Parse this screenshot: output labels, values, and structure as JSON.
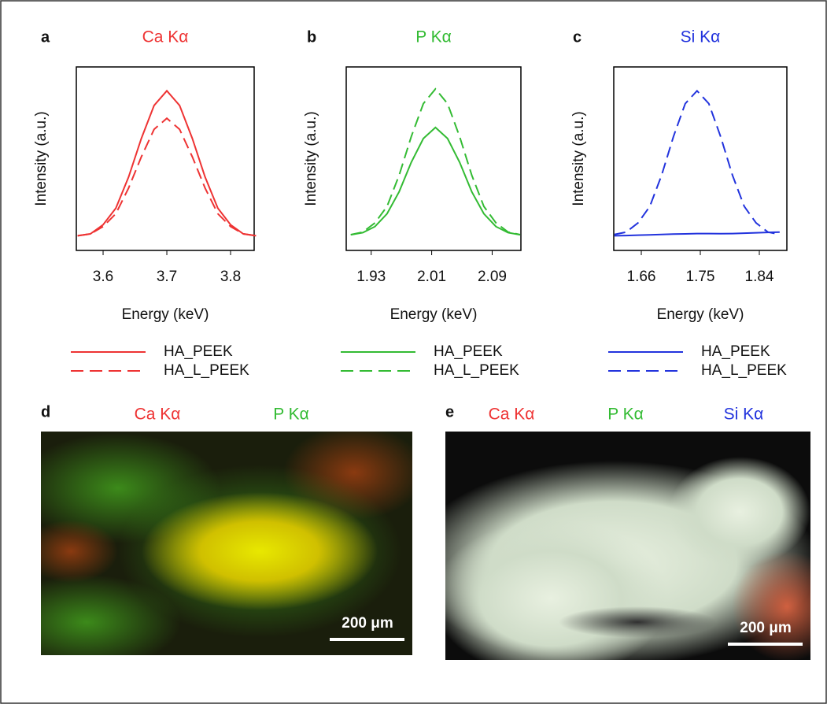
{
  "chart_data": [
    {
      "type": "line",
      "label": "a",
      "title": "Ca Kα",
      "title_color": "#ee3333",
      "xlabel": "Energy (keV)",
      "ylabel": "Intensity (a.u.)",
      "x": [
        3.56,
        3.58,
        3.6,
        3.62,
        3.64,
        3.66,
        3.68,
        3.7,
        3.72,
        3.74,
        3.76,
        3.78,
        3.8,
        3.82,
        3.84
      ],
      "series": [
        {
          "name": "HA_PEEK",
          "color": "#ee3333",
          "dash": false,
          "values": [
            0.08,
            0.09,
            0.14,
            0.23,
            0.4,
            0.61,
            0.79,
            0.87,
            0.79,
            0.61,
            0.4,
            0.23,
            0.14,
            0.09,
            0.08
          ]
        },
        {
          "name": "HA_L_PEEK",
          "color": "#ee3333",
          "dash": true,
          "values": [
            0.08,
            0.09,
            0.13,
            0.2,
            0.34,
            0.51,
            0.66,
            0.72,
            0.66,
            0.51,
            0.34,
            0.2,
            0.13,
            0.09,
            0.08
          ]
        }
      ],
      "xlim": [
        3.558,
        3.837
      ],
      "xticks": [
        3.6,
        3.7,
        3.8
      ],
      "ylim": [
        0,
        1
      ]
    },
    {
      "type": "line",
      "label": "b",
      "title": "P Kα",
      "title_color": "#33bb33",
      "xlabel": "Energy (keV)",
      "ylabel": "Intensity (a.u.)",
      "x": [
        1.903,
        1.919,
        1.935,
        1.951,
        1.967,
        1.983,
        1.999,
        2.015,
        2.031,
        2.047,
        2.063,
        2.079,
        2.095,
        2.111,
        2.127
      ],
      "series": [
        {
          "name": "HA_PEEK",
          "color": "#33bb33",
          "dash": false,
          "values": [
            0.085,
            0.097,
            0.13,
            0.2,
            0.32,
            0.48,
            0.61,
            0.67,
            0.61,
            0.48,
            0.32,
            0.2,
            0.13,
            0.097,
            0.085
          ]
        },
        {
          "name": "HA_L_PEEK",
          "color": "#33bb33",
          "dash": true,
          "values": [
            0.086,
            0.1,
            0.15,
            0.24,
            0.41,
            0.62,
            0.8,
            0.88,
            0.8,
            0.62,
            0.41,
            0.24,
            0.15,
            0.1,
            0.086
          ]
        }
      ],
      "xlim": [
        1.897,
        2.128
      ],
      "xticks": [
        1.93,
        2.01,
        2.09
      ],
      "ylim": [
        0,
        1
      ]
    },
    {
      "type": "line",
      "label": "c",
      "title": "Si Kα",
      "title_color": "#2233dd",
      "xlabel": "Energy (keV)",
      "ylabel": "Intensity (a.u.)",
      "x": [
        1.619,
        1.637,
        1.655,
        1.673,
        1.691,
        1.709,
        1.727,
        1.745,
        1.763,
        1.781,
        1.799,
        1.817,
        1.835,
        1.853,
        1.871
      ],
      "series": [
        {
          "name": "HA_PEEK",
          "color": "#2233dd",
          "dash": false,
          "values": [
            0.08,
            0.081,
            0.083,
            0.085,
            0.087,
            0.089,
            0.09,
            0.092,
            0.092,
            0.091,
            0.092,
            0.094,
            0.096,
            0.098,
            0.1
          ]
        },
        {
          "name": "HA_L_PEEK",
          "color": "#2233dd",
          "dash": true,
          "values": [
            0.087,
            0.1,
            0.15,
            0.24,
            0.41,
            0.62,
            0.8,
            0.87,
            0.8,
            0.62,
            0.41,
            0.24,
            0.15,
            0.1,
            0.087
          ]
        }
      ],
      "xlim": [
        1.618,
        1.882
      ],
      "xticks": [
        1.66,
        1.75,
        1.84
      ],
      "ylim": [
        0,
        1
      ]
    }
  ],
  "images": [
    {
      "label": "d",
      "channels": [
        {
          "name": "Ca Kα",
          "color": "#ee3333"
        },
        {
          "name": "P Kα",
          "color": "#33bb33"
        }
      ],
      "scale_bar": "200 μm"
    },
    {
      "label": "e",
      "channels": [
        {
          "name": "Ca Kα",
          "color": "#ee3333"
        },
        {
          "name": "P Kα",
          "color": "#33bb33"
        },
        {
          "name": "Si Kα",
          "color": "#2233dd"
        }
      ],
      "scale_bar": "200 μm"
    }
  ]
}
